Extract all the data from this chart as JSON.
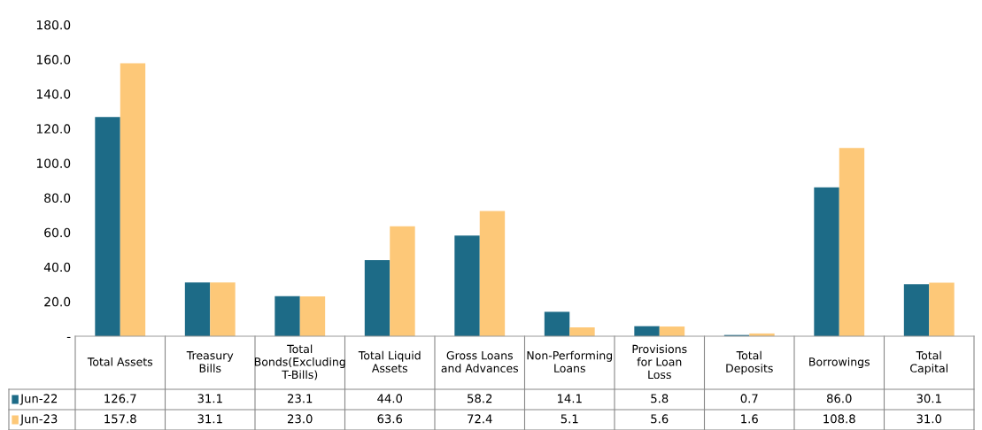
{
  "chart_data": {
    "type": "bar",
    "categories": [
      "Total  Assets",
      "Treasury Bills",
      "Total Bonds(Excluding T-Bills)",
      "Total Liquid Assets",
      "Gross Loans and Advances",
      "Non-Performing Loans",
      "Provisions for Loan Loss",
      "Total Deposits",
      "Borrowings",
      "Total Capital"
    ],
    "series": [
      {
        "name": "Jun-22",
        "color": "#1d6b87",
        "values": [
          126.7,
          31.1,
          23.1,
          44.0,
          58.2,
          14.1,
          5.8,
          0.7,
          86.0,
          30.1
        ],
        "value_labels": [
          "126.7",
          "31.1",
          "23.1",
          "44.0",
          "58.2",
          "14.1",
          "5.8",
          "0.7",
          "86.0",
          "30.1"
        ]
      },
      {
        "name": "Jun-23",
        "color": "#fdc878",
        "values": [
          157.8,
          31.1,
          23.0,
          63.6,
          72.4,
          5.1,
          5.6,
          1.6,
          108.8,
          31.0
        ],
        "value_labels": [
          "157.8",
          "31.1",
          "23.0",
          "63.6",
          "72.4",
          "5.1",
          "5.6",
          "1.6",
          "108.8",
          "31.0"
        ]
      }
    ],
    "ylim": [
      0,
      180
    ],
    "yticks": [
      {
        "value": 0,
        "label": "-"
      },
      {
        "value": 20,
        "label": "20.0"
      },
      {
        "value": 40,
        "label": "40.0"
      },
      {
        "value": 60,
        "label": "60.0"
      },
      {
        "value": 80,
        "label": "80.0"
      },
      {
        "value": 100,
        "label": "100.0"
      },
      {
        "value": 120,
        "label": "120.0"
      },
      {
        "value": 140,
        "label": "140.0"
      },
      {
        "value": 160,
        "label": "160.0"
      },
      {
        "value": 180,
        "label": "180.0"
      }
    ],
    "legend": "bottom left"
  }
}
